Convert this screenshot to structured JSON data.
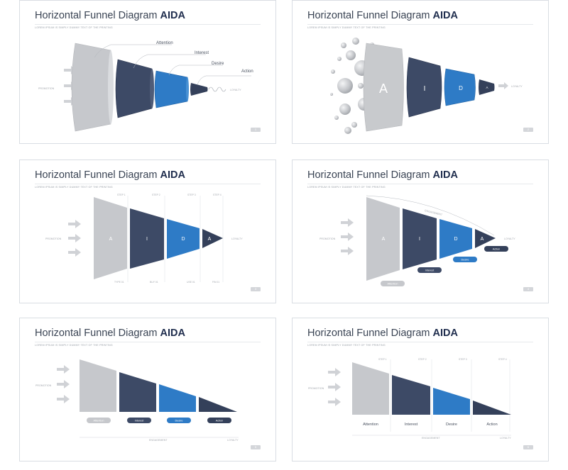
{
  "colors": {
    "gray": "#c4c6ca",
    "navy": "#3d4a66",
    "blue": "#2e7bc6",
    "dark": "#34405a",
    "arrow": "#d0d2d6"
  },
  "slides": [
    {
      "title_main": "Horizontal Funnel Diagram ",
      "title_bold": "AIDA",
      "subtitle": "LOREM IPSUM IS SIMPLY DUMMY TEXT OF THE PRINTING",
      "labels": [
        "Attention",
        "Interest",
        "Desire",
        "Action"
      ],
      "promotion": "PROMOTION",
      "loyalty": "LOYALTY",
      "page": "1"
    },
    {
      "title_main": "Horizontal Funnel Diagram ",
      "title_bold": "AIDA",
      "subtitle": "LOREM IPSUM IS SIMPLY DUMMY TEXT OF THE PRINTING",
      "letters": [
        "A",
        "I",
        "D",
        "A"
      ],
      "loyalty": "LOYALTY",
      "page": "2"
    },
    {
      "title_main": "Horizontal Funnel Diagram ",
      "title_bold": "AIDA",
      "subtitle": "LOREM IPSUM IS SIMPLY DUMMY TEXT OF THE PRINTING",
      "letters": [
        "A",
        "I",
        "D",
        "A"
      ],
      "steps": [
        "STEP 1",
        "STEP 2",
        "STEP 3",
        "STEP 4"
      ],
      "bottom": [
        "TYPE 01",
        "BUY 01",
        "USE 01",
        "FIN 01"
      ],
      "promotion": "PROMOTION",
      "loyalty": "LOYALTY",
      "page": "3"
    },
    {
      "title_main": "Horizontal Funnel Diagram ",
      "title_bold": "AIDA",
      "subtitle": "LOREM IPSUM IS SIMPLY DUMMY TEXT OF THE PRINTING",
      "letters": [
        "A",
        "I",
        "D",
        "A"
      ],
      "engagement": "ENGAGEMENT",
      "pills": [
        "Attention",
        "Interest",
        "Desire",
        "Action"
      ],
      "promotion": "PROMOTION",
      "loyalty": "LOYALTY",
      "page": "4"
    },
    {
      "title_main": "Horizontal Funnel Diagram ",
      "title_bold": "AIDA",
      "subtitle": "LOREM IPSUM IS SIMPLY DUMMY TEXT OF THE PRINTING",
      "pills": [
        "Attention",
        "Interest",
        "Desire",
        "Action"
      ],
      "engagement": "ENGAGEMENT",
      "promotion": "PROMOTION",
      "loyalty": "LOYALTY",
      "page": "5"
    },
    {
      "title_main": "Horizontal Funnel Diagram ",
      "title_bold": "AIDA",
      "subtitle": "LOREM IPSUM IS SIMPLY DUMMY TEXT OF THE PRINTING",
      "steps": [
        "STEP 1",
        "STEP 2",
        "STEP 3",
        "STEP 4"
      ],
      "labels": [
        "Attention",
        "Interest",
        "Desire",
        "Action"
      ],
      "engagement": "ENGAGEMENT",
      "promotion": "PROMOTION",
      "loyalty": "LOYALTY",
      "page": "6"
    }
  ]
}
